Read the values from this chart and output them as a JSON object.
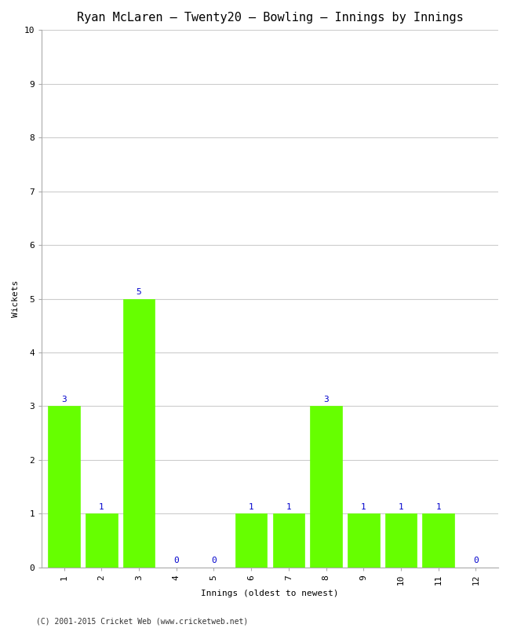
{
  "title": "Ryan McLaren – Twenty20 – Bowling – Innings by Innings",
  "xlabel": "Innings (oldest to newest)",
  "ylabel": "Wickets",
  "categories": [
    "1",
    "2",
    "3",
    "4",
    "5",
    "6",
    "7",
    "8",
    "9",
    "10",
    "11",
    "12"
  ],
  "values": [
    3,
    1,
    5,
    0,
    0,
    1,
    1,
    3,
    1,
    1,
    1,
    0
  ],
  "bar_color": "#66ff00",
  "bar_edge_color": "#66ff00",
  "label_color": "#0000cc",
  "ylim": [
    0,
    10
  ],
  "yticks": [
    0,
    1,
    2,
    3,
    4,
    5,
    6,
    7,
    8,
    9,
    10
  ],
  "background_color": "#ffffff",
  "grid_color": "#cccccc",
  "title_fontsize": 11,
  "axis_label_fontsize": 8,
  "tick_fontsize": 8,
  "annotation_fontsize": 8,
  "footer_text": "(C) 2001-2015 Cricket Web (www.cricketweb.net)",
  "footer_fontsize": 7,
  "bar_width": 0.85
}
